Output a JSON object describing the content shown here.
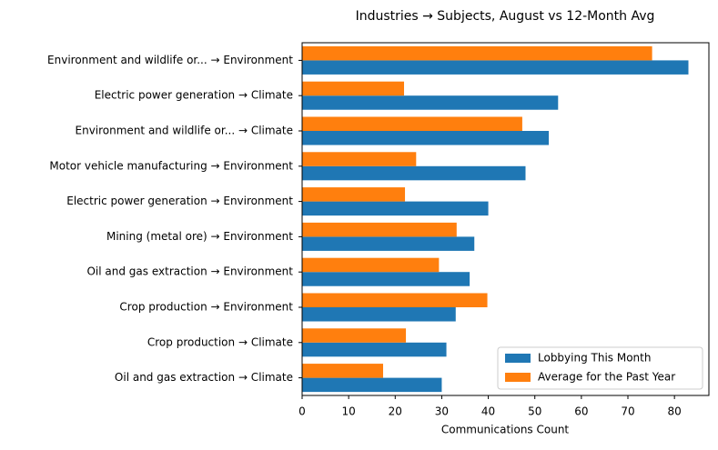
{
  "chart_data": {
    "type": "hbar",
    "title": "Industries → Subjects, August vs 12-Month Avg",
    "x_label": "Communications Count",
    "categories": [
      "Environment and wildlife or... → Environment",
      "Electric power generation → Climate",
      "Environment and wildlife or... → Climate",
      "Motor vehicle manufacturing → Environment",
      "Electric power generation → Environment",
      "Mining (metal ore) → Environment",
      "Oil and gas extraction → Environment",
      "Crop production → Environment",
      "Crop production → Climate",
      "Oil and gas extraction → Climate"
    ],
    "series": [
      {
        "name": "Lobbying This Month",
        "color": "#1f77b4",
        "values": [
          83,
          55,
          53,
          48,
          40,
          37,
          36,
          33,
          31,
          30
        ]
      },
      {
        "name": "Average for the Past Year",
        "color": "#ff7f0e",
        "values": [
          75.2,
          21.9,
          47.3,
          24.5,
          22.1,
          33.2,
          29.4,
          39.8,
          22.3,
          17.4
        ]
      }
    ],
    "xlim": [
      0,
      87.4
    ],
    "xticks": [
      0,
      10,
      20,
      30,
      40,
      50,
      60,
      70,
      80
    ],
    "legend": "lower right"
  }
}
